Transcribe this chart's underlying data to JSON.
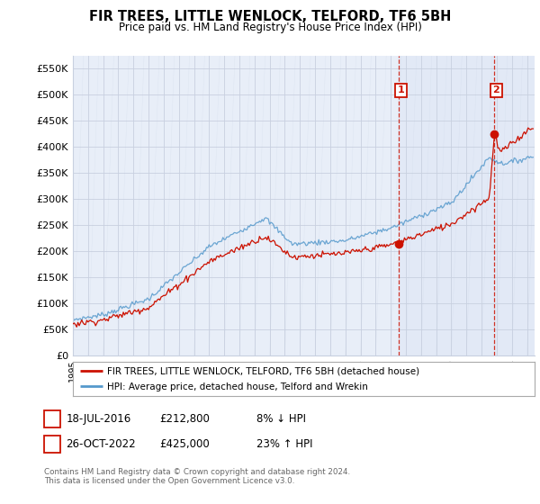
{
  "title": "FIR TREES, LITTLE WENLOCK, TELFORD, TF6 5BH",
  "subtitle": "Price paid vs. HM Land Registry's House Price Index (HPI)",
  "ylabel_ticks": [
    "£0",
    "£50K",
    "£100K",
    "£150K",
    "£200K",
    "£250K",
    "£300K",
    "£350K",
    "£400K",
    "£450K",
    "£500K",
    "£550K"
  ],
  "ytick_values": [
    0,
    50000,
    100000,
    150000,
    200000,
    250000,
    300000,
    350000,
    400000,
    450000,
    500000,
    550000
  ],
  "ylim": [
    0,
    575000
  ],
  "hpi_color": "#5599cc",
  "price_color": "#cc1100",
  "dashed_color": "#cc1100",
  "bg_color": "#e8eef8",
  "bg_color2": "#dde6f5",
  "grid_color": "#c8d0e0",
  "legend_line1": "FIR TREES, LITTLE WENLOCK, TELFORD, TF6 5BH (detached house)",
  "legend_line2": "HPI: Average price, detached house, Telford and Wrekin",
  "note1_date": "18-JUL-2016",
  "note1_price": "£212,800",
  "note1_hpi": "8% ↓ HPI",
  "note2_date": "26-OCT-2022",
  "note2_price": "£425,000",
  "note2_hpi": "23% ↑ HPI",
  "footer": "Contains HM Land Registry data © Crown copyright and database right 2024.\nThis data is licensed under the Open Government Licence v3.0.",
  "xmin": 1995.0,
  "xmax": 2025.5,
  "ann1_x": 2016.54,
  "ann1_y": 212800,
  "ann2_x": 2022.82,
  "ann2_y": 425000
}
